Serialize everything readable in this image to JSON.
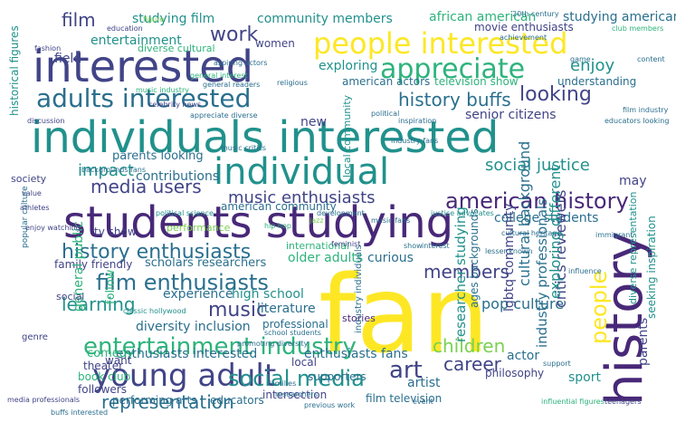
{
  "palette": {
    "navy": "#3b2d6b",
    "indigo": "#414487",
    "blue": "#2a6f8e",
    "teal": "#21918c",
    "green": "#2eb37c",
    "lime": "#7ad151",
    "yellow": "#fde725",
    "purple": "#482878"
  },
  "words": [
    {
      "text": "fan",
      "color": "yellow"
    },
    {
      "text": "individuals interested",
      "color": "teal"
    },
    {
      "text": "students studying",
      "color": "purple"
    },
    {
      "text": "interested",
      "color": "indigo"
    },
    {
      "text": "history",
      "color": "purple"
    },
    {
      "text": "people interested",
      "color": "yellow"
    },
    {
      "text": "young adult",
      "color": "indigo"
    },
    {
      "text": "individual",
      "color": "teal"
    },
    {
      "text": "appreciate",
      "color": "green"
    },
    {
      "text": "adults interested",
      "color": "blue"
    },
    {
      "text": "entertainment industry",
      "color": "green"
    },
    {
      "text": "history enthusiasts",
      "color": "blue"
    },
    {
      "text": "film enthusiasts",
      "color": "blue"
    },
    {
      "text": "social media",
      "color": "teal"
    },
    {
      "text": "american history",
      "color": "purple"
    },
    {
      "text": "people",
      "color": "yellow"
    },
    {
      "text": "media users",
      "color": "indigo"
    },
    {
      "text": "music enthusiasts",
      "color": "indigo"
    },
    {
      "text": "representation",
      "color": "blue"
    },
    {
      "text": "history buffs",
      "color": "blue"
    },
    {
      "text": "looking",
      "color": "indigo"
    },
    {
      "text": "social justice",
      "color": "teal"
    },
    {
      "text": "film",
      "color": "indigo"
    },
    {
      "text": "work",
      "color": "indigo"
    },
    {
      "text": "music",
      "color": "indigo"
    },
    {
      "text": "art",
      "color": "indigo"
    },
    {
      "text": "enjoy",
      "color": "teal"
    },
    {
      "text": "learning",
      "color": "teal"
    },
    {
      "text": "children",
      "color": "lime"
    },
    {
      "text": "impact",
      "color": "teal"
    },
    {
      "text": "members",
      "color": "indigo"
    },
    {
      "text": "career",
      "color": "indigo"
    },
    {
      "text": "pop culture",
      "color": "blue"
    },
    {
      "text": "college students",
      "color": "blue"
    },
    {
      "text": "studying film",
      "color": "teal"
    },
    {
      "text": "community members",
      "color": "teal"
    },
    {
      "text": "african american",
      "color": "green"
    },
    {
      "text": "studying american",
      "color": "blue"
    },
    {
      "text": "entertainment",
      "color": "teal"
    },
    {
      "text": "movie enthusiasts",
      "color": "indigo"
    },
    {
      "text": "exploring",
      "color": "teal"
    },
    {
      "text": "american actors",
      "color": "blue"
    },
    {
      "text": "television show",
      "color": "green"
    },
    {
      "text": "understanding",
      "color": "blue"
    },
    {
      "text": "senior citizens",
      "color": "indigo"
    },
    {
      "text": "contributions",
      "color": "blue"
    },
    {
      "text": "parents looking",
      "color": "blue"
    },
    {
      "text": "tv show",
      "color": "indigo"
    },
    {
      "text": "may",
      "color": "indigo"
    },
    {
      "text": "diversity inclusion",
      "color": "blue"
    },
    {
      "text": "enthusiasts interested",
      "color": "blue"
    },
    {
      "text": "comedy",
      "color": "green"
    },
    {
      "text": "experience",
      "color": "blue"
    },
    {
      "text": "high school",
      "color": "teal"
    },
    {
      "text": "literature",
      "color": "blue"
    },
    {
      "text": "older adults",
      "color": "green"
    },
    {
      "text": "curious",
      "color": "blue"
    },
    {
      "text": "scholars researchers",
      "color": "blue"
    },
    {
      "text": "family friendly",
      "color": "indigo"
    },
    {
      "text": "book club",
      "color": "green"
    },
    {
      "text": "followers",
      "color": "indigo"
    },
    {
      "text": "performing arts",
      "color": "blue"
    },
    {
      "text": "educators",
      "color": "blue"
    },
    {
      "text": "intersection",
      "color": "indigo"
    },
    {
      "text": "supporters",
      "color": "blue"
    },
    {
      "text": "film television",
      "color": "blue"
    },
    {
      "text": "artist",
      "color": "blue"
    },
    {
      "text": "philosophy",
      "color": "indigo"
    },
    {
      "text": "actor",
      "color": "blue"
    },
    {
      "text": "enthusiasts fans",
      "color": "blue"
    },
    {
      "text": "professional",
      "color": "blue"
    },
    {
      "text": "field",
      "color": "indigo"
    },
    {
      "text": "women",
      "color": "indigo"
    },
    {
      "text": "new",
      "color": "indigo"
    },
    {
      "text": "local",
      "color": "indigo"
    },
    {
      "text": "want",
      "color": "indigo"
    },
    {
      "text": "theater",
      "color": "indigo"
    },
    {
      "text": "sport",
      "color": "teal"
    },
    {
      "text": "performance",
      "color": "lime"
    },
    {
      "text": "american community",
      "color": "blue"
    },
    {
      "text": "international",
      "color": "green"
    },
    {
      "text": "stories",
      "color": "purple"
    },
    {
      "text": "general public",
      "color": "green"
    },
    {
      "text": "follow",
      "color": "green"
    },
    {
      "text": "critics reviewers",
      "color": "indigo"
    },
    {
      "text": "cultural background",
      "color": "blue"
    },
    {
      "text": "industry professionals",
      "color": "blue"
    },
    {
      "text": "exploring different",
      "color": "teal"
    },
    {
      "text": "lgbtq community",
      "color": "indigo"
    },
    {
      "text": "researcher studying",
      "color": "teal"
    },
    {
      "text": "ages backgrounds",
      "color": "blue"
    },
    {
      "text": "parents",
      "color": "indigo"
    },
    {
      "text": "seeking inspiration",
      "color": "teal"
    },
    {
      "text": "diverse representation",
      "color": "teal"
    },
    {
      "text": "historical figures",
      "color": "teal"
    },
    {
      "text": "local community",
      "color": "teal"
    },
    {
      "text": "industry individuals",
      "color": "blue"
    },
    {
      "text": "aspiring actors",
      "color": "blue"
    },
    {
      "text": "general interest",
      "color": "green"
    },
    {
      "text": "religious",
      "color": "blue"
    },
    {
      "text": "political",
      "color": "blue"
    },
    {
      "text": "diverse cultural",
      "color": "green"
    },
    {
      "text": "education",
      "color": "indigo"
    },
    {
      "text": "general readers",
      "color": "blue"
    },
    {
      "text": "music industry",
      "color": "green"
    },
    {
      "text": "celebrity news",
      "color": "indigo"
    },
    {
      "text": "appreciate diverse",
      "color": "blue"
    },
    {
      "text": "music critics",
      "color": "blue"
    },
    {
      "text": "industry fans",
      "color": "blue"
    },
    {
      "text": "hip hop",
      "color": "green"
    },
    {
      "text": "jazz",
      "color": "lime"
    },
    {
      "text": "feminist",
      "color": "indigo"
    },
    {
      "text": "cultural heritage",
      "color": "blue"
    },
    {
      "text": "lesser known",
      "color": "blue"
    },
    {
      "text": "promoting diversity",
      "color": "blue"
    },
    {
      "text": "school students",
      "color": "blue"
    },
    {
      "text": "classic hollywood",
      "color": "teal"
    },
    {
      "text": "genre",
      "color": "indigo"
    },
    {
      "text": "social",
      "color": "indigo"
    },
    {
      "text": "society",
      "color": "indigo"
    },
    {
      "text": "value",
      "color": "indigo"
    },
    {
      "text": "athletes",
      "color": "indigo"
    },
    {
      "text": "popular culture",
      "color": "blue"
    },
    {
      "text": "enjoy watching",
      "color": "indigo"
    },
    {
      "text": "backgrounds fans",
      "color": "blue"
    },
    {
      "text": "figure",
      "color": "lime"
    },
    {
      "text": "20th century",
      "color": "blue"
    },
    {
      "text": "achievement",
      "color": "blue"
    },
    {
      "text": "club members",
      "color": "green"
    },
    {
      "text": "content",
      "color": "blue"
    },
    {
      "text": "game",
      "color": "blue"
    },
    {
      "text": "film industry",
      "color": "blue"
    },
    {
      "text": "educators looking",
      "color": "blue"
    },
    {
      "text": "discussion",
      "color": "indigo"
    },
    {
      "text": "fashion",
      "color": "indigo"
    },
    {
      "text": "inspiration",
      "color": "blue"
    },
    {
      "text": "influential figures",
      "color": "green"
    },
    {
      "text": "teenagers",
      "color": "indigo"
    },
    {
      "text": "event",
      "color": "blue"
    },
    {
      "text": "media professionals",
      "color": "indigo"
    },
    {
      "text": "buffs interested",
      "color": "blue"
    },
    {
      "text": "previous work",
      "color": "blue"
    },
    {
      "text": "families",
      "color": "blue"
    },
    {
      "text": "researchers",
      "color": "blue"
    },
    {
      "text": "justice advocates",
      "color": "teal"
    },
    {
      "text": "political science",
      "color": "teal"
    },
    {
      "text": "development",
      "color": "blue"
    },
    {
      "text": "music fans",
      "color": "blue"
    },
    {
      "text": "interest",
      "color": "blue"
    },
    {
      "text": "show",
      "color": "blue"
    },
    {
      "text": "influence",
      "color": "blue"
    },
    {
      "text": "immigrant",
      "color": "blue"
    },
    {
      "text": "support",
      "color": "blue"
    }
  ]
}
